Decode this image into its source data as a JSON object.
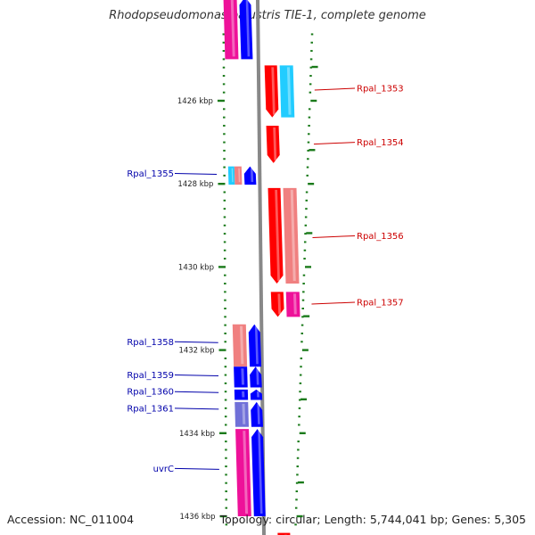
{
  "title": "Rhodopseudomonas palustris TIE-1, complete genome",
  "accession": "Accession: NC_011004",
  "summary": "Topology: circular; Length: 5,744,041 bp; Genes: 5,305",
  "colors": {
    "backbone": "#888888",
    "tick": "#1a7a1a",
    "forward_label": "#cc0000",
    "reverse_label": "#0000aa",
    "red": "#ff0000",
    "cyan": "#22ccff",
    "salmon": "#f08080",
    "magenta": "#ee1199",
    "blue": "#0000ff",
    "slate": "#7070d8"
  },
  "diagram": {
    "kbp_ticks": [
      {
        "kbp": 1426,
        "label": "1426 kbp"
      },
      {
        "kbp": 1428,
        "label": "1428 kbp"
      },
      {
        "kbp": 1430,
        "label": "1430 kbp"
      },
      {
        "kbp": 1432,
        "label": "1432 kbp"
      },
      {
        "kbp": 1434,
        "label": "1434 kbp"
      },
      {
        "kbp": 1436,
        "label": "1436 kbp"
      }
    ],
    "features": [
      {
        "track": "inner_left",
        "start": 1423.5,
        "end": 1425.0,
        "color": "magenta"
      },
      {
        "track": "reverse_arrow",
        "start": 1423.5,
        "end": 1425.0,
        "color": "blue"
      },
      {
        "track": "forward_arrow",
        "start": 1425.15,
        "end": 1426.4,
        "color": "red"
      },
      {
        "track": "outer_right",
        "start": 1425.15,
        "end": 1426.4,
        "color": "cyan"
      },
      {
        "track": "forward_arrow",
        "start": 1426.6,
        "end": 1427.5,
        "color": "red"
      },
      {
        "track": "inner_left_a",
        "start": 1427.58,
        "end": 1428.02,
        "color": "cyan"
      },
      {
        "track": "inner_left_b",
        "start": 1427.58,
        "end": 1428.02,
        "color": "salmon"
      },
      {
        "track": "reverse_arrow",
        "start": 1427.58,
        "end": 1428.02,
        "color": "blue"
      },
      {
        "track": "forward_arrow",
        "start": 1428.1,
        "end": 1430.4,
        "color": "red"
      },
      {
        "track": "outer_right",
        "start": 1428.1,
        "end": 1430.4,
        "color": "salmon"
      },
      {
        "track": "forward_arrow",
        "start": 1430.6,
        "end": 1431.2,
        "color": "red"
      },
      {
        "track": "outer_right",
        "start": 1430.6,
        "end": 1431.2,
        "color": "magenta"
      },
      {
        "track": "inner_left",
        "start": 1431.38,
        "end": 1432.4,
        "color": "salmon"
      },
      {
        "track": "reverse_arrow",
        "start": 1431.38,
        "end": 1432.4,
        "color": "blue"
      },
      {
        "track": "inner_left",
        "start": 1432.4,
        "end": 1432.9,
        "color": "blue"
      },
      {
        "track": "reverse_arrow",
        "start": 1432.4,
        "end": 1432.9,
        "color": "blue"
      },
      {
        "track": "inner_left",
        "start": 1432.95,
        "end": 1433.2,
        "color": "blue"
      },
      {
        "track": "reverse_arrow",
        "start": 1432.95,
        "end": 1433.2,
        "color": "blue"
      },
      {
        "track": "inner_left",
        "start": 1433.25,
        "end": 1433.85,
        "color": "slate"
      },
      {
        "track": "reverse_arrow",
        "start": 1433.25,
        "end": 1433.85,
        "color": "blue"
      },
      {
        "track": "inner_left",
        "start": 1433.9,
        "end": 1436.0,
        "color": "magenta"
      },
      {
        "track": "reverse_arrow",
        "start": 1433.9,
        "end": 1436.0,
        "color": "blue"
      },
      {
        "track": "forward_arrow",
        "start": 1436.4,
        "end": 1436.6,
        "color": "red"
      }
    ],
    "labels": [
      {
        "text": "Rpal_1353",
        "strand": "forward",
        "kbp": 1425.7
      },
      {
        "text": "Rpal_1354",
        "strand": "forward",
        "kbp": 1427.0
      },
      {
        "text": "Rpal_1355",
        "strand": "reverse",
        "kbp": 1427.75
      },
      {
        "text": "Rpal_1356",
        "strand": "forward",
        "kbp": 1429.25
      },
      {
        "text": "Rpal_1357",
        "strand": "forward",
        "kbp": 1430.85
      },
      {
        "text": "Rpal_1358",
        "strand": "reverse",
        "kbp": 1431.8
      },
      {
        "text": "Rpal_1359",
        "strand": "reverse",
        "kbp": 1432.6
      },
      {
        "text": "Rpal_1360",
        "strand": "reverse",
        "kbp": 1433.0
      },
      {
        "text": "Rpal_1361",
        "strand": "reverse",
        "kbp": 1433.4
      },
      {
        "text": "uvrC",
        "strand": "reverse",
        "kbp": 1434.85
      }
    ]
  }
}
